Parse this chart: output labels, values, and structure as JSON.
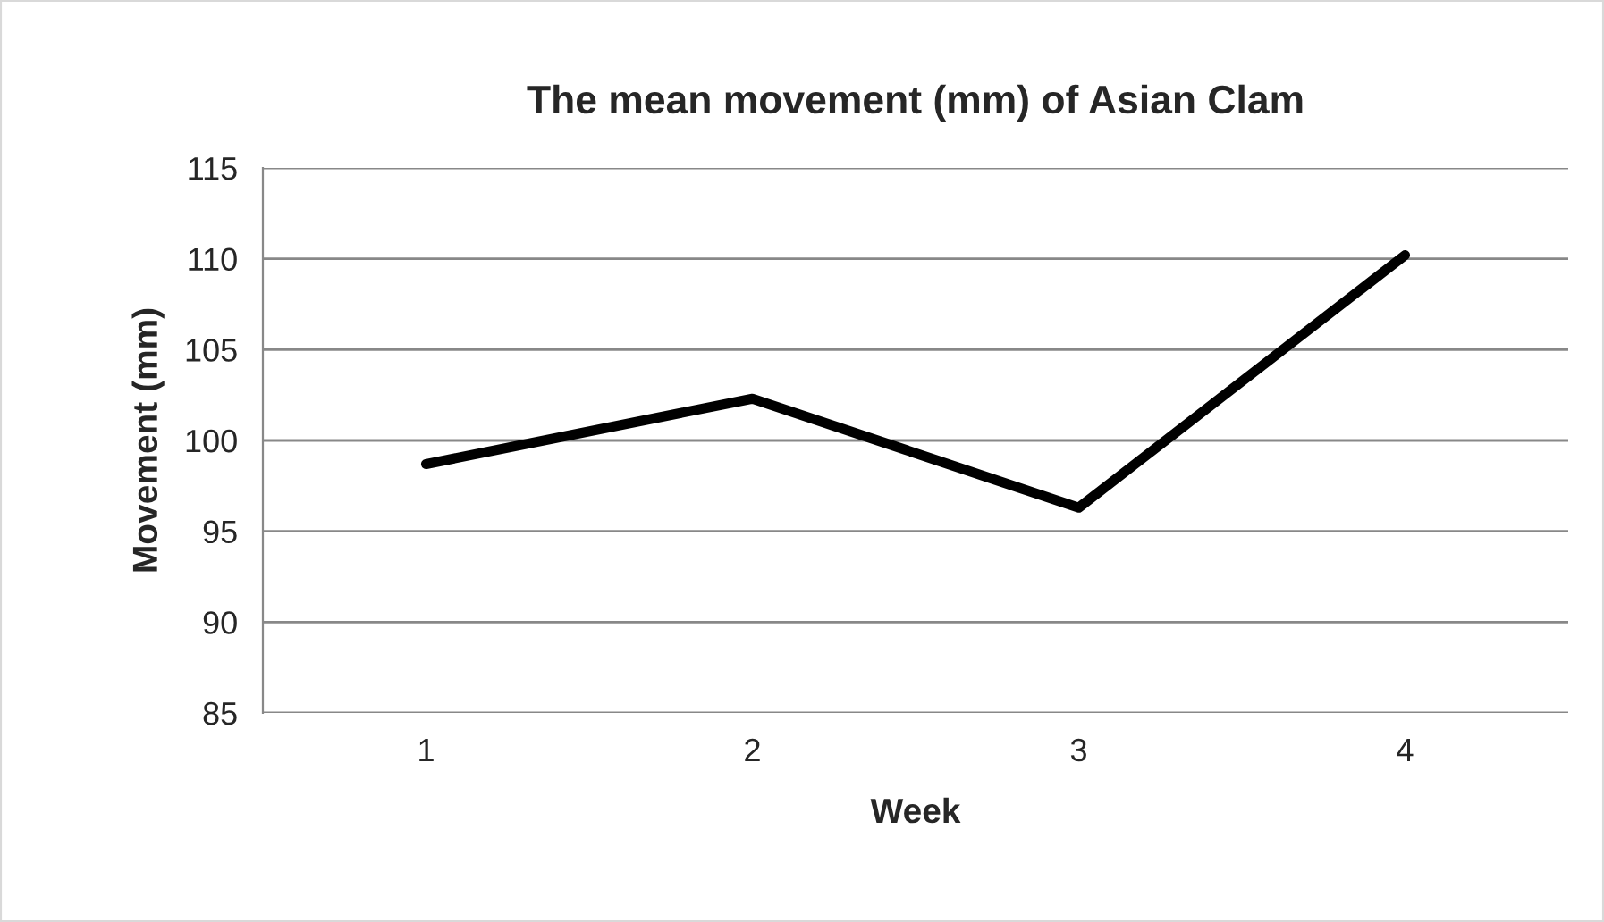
{
  "chart_data": {
    "type": "line",
    "title": "The mean movement (mm) of Asian Clam",
    "xlabel": "Week",
    "ylabel": "Movement (mm)",
    "categories": [
      "1",
      "2",
      "3",
      "4"
    ],
    "series": [
      {
        "color": "#000000",
        "values": [
          98.7,
          102.3,
          96.3,
          110.2
        ]
      }
    ],
    "ylim": [
      85,
      115
    ],
    "yticks": [
      85,
      90,
      95,
      100,
      105,
      110,
      115
    ],
    "grid": "y",
    "marker": "none",
    "line_style": "solid"
  }
}
